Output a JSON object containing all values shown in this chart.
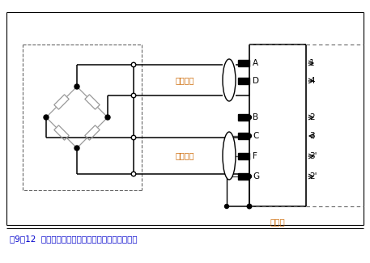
{
  "title": "图9－12  四线制传感器与六线制测量放大器的连接。",
  "title_color": "#0000cc",
  "amplifier_label": "放大器",
  "amplifier_label_color": "#cc6600",
  "signal_voltage_label": "信号电压",
  "signal_voltage_color": "#cc6600",
  "supply_voltage_label": "供电电压",
  "supply_voltage_color": "#cc6600",
  "bg_color": "#ffffff"
}
